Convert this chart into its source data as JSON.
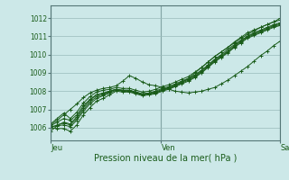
{
  "xlabel": "Pression niveau de la mer( hPa )",
  "bg_color": "#cce8e8",
  "plot_bg_color": "#cce8e8",
  "grid_color": "#99bbbb",
  "line_color": "#1a5c1a",
  "ylim": [
    1005.3,
    1012.7
  ],
  "yticks": [
    1006,
    1007,
    1008,
    1009,
    1010,
    1011,
    1012
  ],
  "day_labels": [
    "Jeu",
    "Ven",
    "Sam"
  ],
  "day_positions": [
    0.0,
    0.4815,
    1.0
  ],
  "xlim": [
    0.0,
    1.0
  ],
  "series": [
    [
      1005.8,
      1006.1,
      1006.3,
      1006.2,
      1006.6,
      1007.1,
      1007.5,
      1007.8,
      1007.85,
      1008.0,
      1008.1,
      1008.0,
      1008.0,
      1007.9,
      1007.8,
      1007.85,
      1007.9,
      1008.05,
      1008.15,
      1008.3,
      1008.5,
      1008.7,
      1009.0,
      1009.3,
      1009.6,
      1009.9,
      1010.15,
      1010.4,
      1010.65,
      1010.9,
      1011.1,
      1011.3,
      1011.5,
      1011.65,
      1011.8,
      1012.0
    ],
    [
      1006.1,
      1006.3,
      1006.5,
      1006.4,
      1006.7,
      1007.2,
      1007.55,
      1007.8,
      1007.9,
      1008.0,
      1008.1,
      1008.05,
      1008.05,
      1007.95,
      1007.85,
      1007.9,
      1008.0,
      1008.15,
      1008.25,
      1008.4,
      1008.55,
      1008.7,
      1008.9,
      1009.15,
      1009.45,
      1009.75,
      1010.0,
      1010.3,
      1010.55,
      1010.8,
      1011.0,
      1011.2,
      1011.35,
      1011.5,
      1011.65,
      1011.75
    ],
    [
      1006.0,
      1006.15,
      1006.25,
      1006.15,
      1006.5,
      1007.0,
      1007.4,
      1007.7,
      1007.8,
      1007.95,
      1008.1,
      1008.05,
      1008.05,
      1007.95,
      1007.85,
      1007.9,
      1007.95,
      1008.1,
      1008.2,
      1008.35,
      1008.5,
      1008.65,
      1008.85,
      1009.1,
      1009.4,
      1009.7,
      1009.95,
      1010.2,
      1010.5,
      1010.75,
      1011.0,
      1011.15,
      1011.3,
      1011.45,
      1011.6,
      1011.7
    ],
    [
      1006.05,
      1006.1,
      1006.15,
      1006.05,
      1006.4,
      1006.9,
      1007.3,
      1007.6,
      1007.75,
      1007.9,
      1008.05,
      1008.0,
      1008.0,
      1007.9,
      1007.8,
      1007.85,
      1007.9,
      1008.05,
      1008.15,
      1008.3,
      1008.45,
      1008.6,
      1008.8,
      1009.05,
      1009.35,
      1009.65,
      1009.9,
      1010.15,
      1010.45,
      1010.7,
      1010.95,
      1011.1,
      1011.25,
      1011.4,
      1011.55,
      1011.65
    ],
    [
      1006.2,
      1006.5,
      1006.8,
      1006.5,
      1006.85,
      1007.35,
      1007.7,
      1007.95,
      1008.05,
      1008.1,
      1008.2,
      1008.15,
      1008.15,
      1008.05,
      1007.95,
      1008.0,
      1008.1,
      1008.25,
      1008.35,
      1008.5,
      1008.65,
      1008.8,
      1009.05,
      1009.3,
      1009.6,
      1009.9,
      1010.15,
      1010.4,
      1010.7,
      1010.95,
      1011.2,
      1011.35,
      1011.5,
      1011.65,
      1011.8,
      1011.9
    ],
    [
      1006.0,
      1005.95,
      1005.95,
      1005.8,
      1006.15,
      1006.7,
      1007.1,
      1007.45,
      1007.6,
      1007.8,
      1008.0,
      1007.95,
      1007.95,
      1007.85,
      1007.75,
      1007.8,
      1007.85,
      1008.0,
      1008.1,
      1008.25,
      1008.4,
      1008.55,
      1008.75,
      1009.0,
      1009.3,
      1009.6,
      1009.85,
      1010.1,
      1010.4,
      1010.65,
      1010.9,
      1011.05,
      1011.2,
      1011.35,
      1011.5,
      1011.6
    ],
    [
      1006.15,
      1006.4,
      1006.7,
      1007.0,
      1007.3,
      1007.65,
      1007.9,
      1008.05,
      1008.15,
      1008.2,
      1008.3,
      1008.55,
      1008.85,
      1008.7,
      1008.5,
      1008.35,
      1008.3,
      1008.2,
      1008.1,
      1008.0,
      1007.95,
      1007.9,
      1007.95,
      1008.0,
      1008.1,
      1008.2,
      1008.4,
      1008.6,
      1008.85,
      1009.1,
      1009.35,
      1009.65,
      1009.95,
      1010.2,
      1010.5,
      1010.75
    ]
  ]
}
